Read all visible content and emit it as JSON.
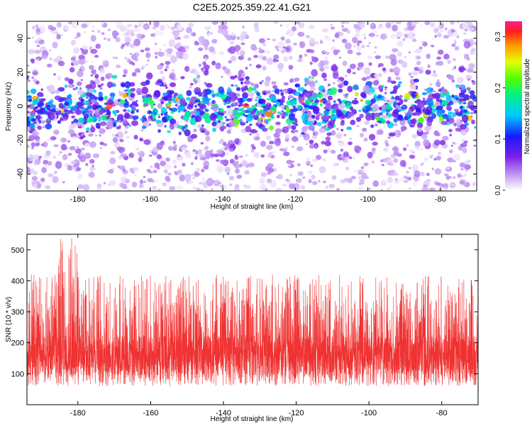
{
  "title": "C2E5.2025.359.22.41.G21",
  "colors": {
    "snr": "#f03232",
    "axis": "#000000",
    "background": "#ffffff"
  },
  "chart_data": [
    {
      "type": "heatmap",
      "xlabel": "Height of straight line (km)",
      "ylabel": "Frequency (Hz)",
      "xlim": [
        -194,
        -70
      ],
      "ylim": [
        -50,
        50
      ],
      "xticks": [
        -180,
        -160,
        -140,
        -120,
        -100,
        -80
      ],
      "yticks": [
        -40,
        -20,
        0,
        20,
        40
      ],
      "colorbar": {
        "label": "Normalized spectral amplitude",
        "range": [
          0,
          0.33
        ],
        "ticks": [
          0.0,
          0.1,
          0.2,
          0.3
        ],
        "colormap": "rainbow"
      },
      "grid": false,
      "features": [
        {
          "description_value": "peak_band",
          "y_center": 0,
          "y_halfwidth": 8,
          "typical_amplitude": 0.15,
          "max_amplitude": 0.3
        }
      ]
    },
    {
      "type": "line",
      "xlabel": "Height of straight line (km)",
      "ylabel": "SNR (10 * v/v)",
      "xlim": [
        -194,
        -70
      ],
      "ylim": [
        0,
        550
      ],
      "xticks": [
        -180,
        -160,
        -140,
        -120,
        -100,
        -80
      ],
      "yticks": [
        100,
        200,
        300,
        400,
        500
      ],
      "grid": false,
      "series": [
        {
          "color": "#f03232",
          "baseline": 160,
          "spread_low": 60,
          "spread_high": 340,
          "max": 540
        }
      ]
    }
  ]
}
